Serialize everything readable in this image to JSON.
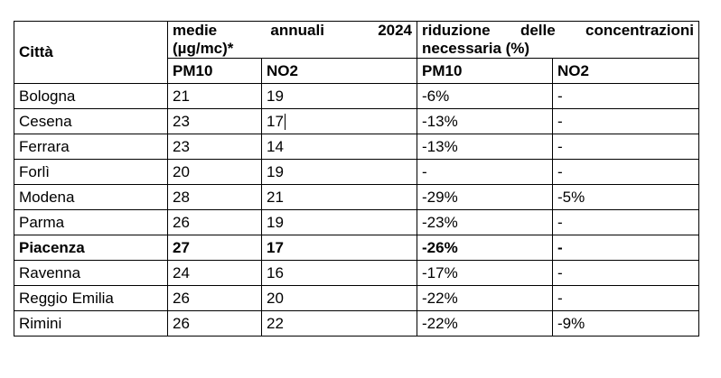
{
  "table": {
    "city_header": "Città",
    "group1_line1_words": [
      "medie",
      "annuali",
      "2024"
    ],
    "group1_line2": "(µg/mc)*",
    "group2_line1_words": [
      "riduzione",
      "delle",
      "concentrazioni"
    ],
    "group2_line2": "necessaria (%)",
    "sub_headers": [
      "PM10",
      "NO2",
      "PM10",
      "NO2"
    ],
    "rows": [
      {
        "city": "Bologna",
        "pm10": "21",
        "no2": "19",
        "red_pm10": "-6%",
        "red_no2": "-"
      },
      {
        "city": "Cesena",
        "pm10": "23",
        "no2": "17",
        "red_pm10": "-13%",
        "red_no2": "-"
      },
      {
        "city": "Ferrara",
        "pm10": "23",
        "no2": "14",
        "red_pm10": "-13%",
        "red_no2": "-"
      },
      {
        "city": "Forlì",
        "pm10": "20",
        "no2": "19",
        "red_pm10": "-",
        "red_no2": "-"
      },
      {
        "city": "Modena",
        "pm10": "28",
        "no2": "21",
        "red_pm10": "-29%",
        "red_no2": "-5%"
      },
      {
        "city": "Parma",
        "pm10": "26",
        "no2": "19",
        "red_pm10": "-23%",
        "red_no2": "-"
      },
      {
        "city": "Piacenza",
        "pm10": "27",
        "no2": "17",
        "red_pm10": "-26%",
        "red_no2": "-"
      },
      {
        "city": "Ravenna",
        "pm10": "24",
        "no2": "16",
        "red_pm10": "-17%",
        "red_no2": "-"
      },
      {
        "city": "Reggio Emilia",
        "pm10": "26",
        "no2": "20",
        "red_pm10": "-22%",
        "red_no2": "-"
      },
      {
        "city": "Rimini",
        "pm10": "26",
        "no2": "22",
        "red_pm10": "-22%",
        "red_no2": "-9%"
      }
    ]
  }
}
